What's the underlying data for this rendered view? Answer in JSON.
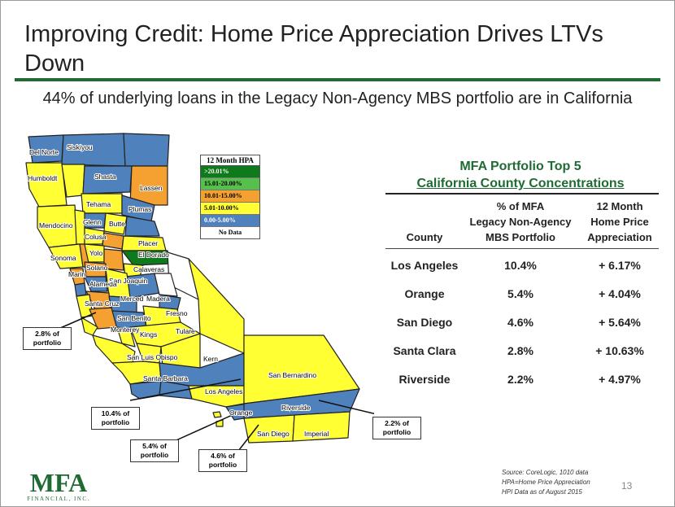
{
  "title": "Improving Credit: Home Price Appreciation Drives LTVs Down",
  "subtitle": "44% of underlying loans in the Legacy Non-Agency MBS portfolio are in California",
  "legend": {
    "title": "12 Month HPA",
    "items": [
      {
        "label": ">20.01%",
        "color": "#0f7a1c",
        "text_color": "#ffffff"
      },
      {
        "label": "15.01-20.00%",
        "color": "#55c04c",
        "text_color": "#000000"
      },
      {
        "label": "10.01-15.00%",
        "color": "#f4a131",
        "text_color": "#000000"
      },
      {
        "label": "5.01-10.00%",
        "color": "#ffff33",
        "text_color": "#000000"
      },
      {
        "label": "0.00-5.00%",
        "color": "#4f81bd",
        "text_color": "#ffffff"
      },
      {
        "label": "No Data",
        "color": "#ffffff",
        "text_color": "#000000"
      }
    ]
  },
  "county_labels": [
    "Del Norte",
    "Siskiyou",
    "Humboldt",
    "Shasta",
    "Lassen",
    "Tehama",
    "Plumas",
    "Glenn",
    "Butte",
    "Mendocino",
    "Colusa",
    "Placer",
    "El Dorado",
    "Yolo",
    "Sonoma",
    "Solano",
    "Marin",
    "San Joaquin",
    "Calaveras",
    "Alameda",
    "Santa Cruz",
    "Merced",
    "Madera",
    "San Benito",
    "Fresno",
    "Monterey",
    "Kings",
    "Tulare",
    "San Luis Obispo",
    "Kern",
    "Santa Barbara",
    "San Bernardino",
    "Los Angeles",
    "Orange",
    "Riverside",
    "San Diego",
    "Imperial"
  ],
  "callouts": [
    {
      "line1": "2.8% of",
      "line2": "portfolio"
    },
    {
      "line1": "10.4% of",
      "line2": "portfolio"
    },
    {
      "line1": "5.4% of",
      "line2": "portfolio"
    },
    {
      "line1": "4.6% of",
      "line2": "portfolio"
    },
    {
      "line1": "2.2% of",
      "line2": "portfolio"
    }
  ],
  "table": {
    "title_line1": "MFA Portfolio Top 5",
    "title_line2": "California County Concentrations",
    "headers": {
      "county": "County",
      "pct_line1": "% of MFA",
      "pct_line2": "Legacy Non-Agency",
      "pct_line3": "MBS Portfolio",
      "hpa_line1": "12 Month",
      "hpa_line2": "Home Price",
      "hpa_line3": "Appreciation"
    },
    "rows": [
      {
        "county": "Los Angeles",
        "pct": "10.4%",
        "hpa": "+ 6.17%"
      },
      {
        "county": "Orange",
        "pct": "5.4%",
        "hpa": "+ 4.04%"
      },
      {
        "county": "San Diego",
        "pct": "4.6%",
        "hpa": "+ 5.64%"
      },
      {
        "county": "Santa Clara",
        "pct": "2.8%",
        "hpa": "+ 10.63%"
      },
      {
        "county": "Riverside",
        "pct": "2.2%",
        "hpa": "+ 4.97%"
      }
    ]
  },
  "logo": {
    "text": "MFA",
    "sub": "FINANCIAL, INC."
  },
  "source": {
    "line1": "Source: CoreLogic, 1010 data",
    "line2": "HPA=Home Price Appreciation",
    "line3": "HPI Data as of August 2015"
  },
  "page_number": "13",
  "colors": {
    "accent": "#1f6b33",
    "blue": "#4f81bd",
    "yellow": "#ffff33",
    "orange": "#f4a131",
    "green": "#0f7a1c"
  }
}
